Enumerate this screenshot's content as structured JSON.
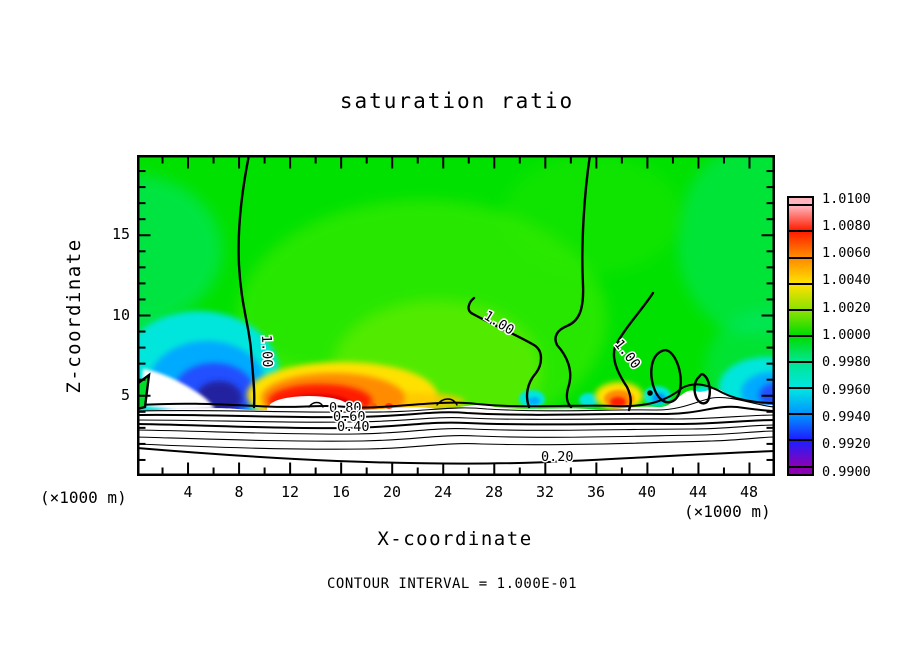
{
  "title": "saturation ratio",
  "axes": {
    "x": {
      "label": "X-coordinate",
      "unit_note_left": "(×1000 m)",
      "unit_note_right": "(×1000 m)",
      "tick_labels": [
        "4",
        "8",
        "12",
        "16",
        "20",
        "24",
        "28",
        "32",
        "36",
        "40",
        "44",
        "48"
      ]
    },
    "z": {
      "label": "Z-coordinate",
      "tick_labels": [
        "5",
        "10",
        "15"
      ]
    }
  },
  "colorbar": {
    "labels": [
      "1.0100",
      "1.0080",
      "1.0060",
      "1.0040",
      "1.0020",
      "1.0000",
      "0.9980",
      "0.9960",
      "0.9940",
      "0.9920",
      "0.9900"
    ],
    "colors_top_to_bottom": [
      "#ffb4be",
      "#ff1e00",
      "#ff8c00",
      "#ffe100",
      "#8ce100",
      "#00dc00",
      "#00e691",
      "#00e6e1",
      "#0096ff",
      "#1e1eff",
      "#8c00b4"
    ]
  },
  "contour_labels": {
    "one": "1.00",
    "eighty": "0.80",
    "sixty": "0.60",
    "forty": "0.40",
    "twenty": "0.20"
  },
  "footer": {
    "contour_note": "CONTOUR INTERVAL = 1.000E-01"
  },
  "chart_data": {
    "type": "heatmap",
    "title": "saturation ratio",
    "xlabel": "X-coordinate",
    "ylabel": "Z-coordinate",
    "axis_units": "×1000 m",
    "xlim": [
      0,
      50
    ],
    "zlim": [
      0,
      20
    ],
    "x_major_step": 4,
    "x_minor_step": 2,
    "z_major_step": 5,
    "z_minor_step": 1,
    "x_tick_values": [
      4,
      8,
      12,
      16,
      20,
      24,
      28,
      32,
      36,
      40,
      44,
      48
    ],
    "z_tick_values": [
      5,
      10,
      15
    ],
    "colorbar": {
      "min": 0.99,
      "max": 1.01,
      "tick_values": [
        1.01,
        1.008,
        1.006,
        1.004,
        1.002,
        1.0,
        0.998,
        0.996,
        0.994,
        0.992,
        0.99
      ],
      "colors_top_to_bottom": [
        "#ffb4be",
        "#ff1e00",
        "#ff8c00",
        "#ffe100",
        "#8ce100",
        "#00dc00",
        "#00e691",
        "#00e6e1",
        "#0096ff",
        "#1e1eff",
        "#8c00b4"
      ],
      "orientation": "vertical-right"
    },
    "contour_interval": 0.1,
    "contour_interval_note": "CONTOUR INTERVAL = 1.000E-01",
    "labeled_contour_values": [
      0.2,
      0.4,
      0.6,
      0.8,
      1.0
    ],
    "features": [
      "field mostly green (saturation ~1.000-1.002) above z~4.5",
      "white sub-saturated layer below z~4.5 crossed by ~9 quasi-horizontal contour lines (0.2 to 0.9, interval 0.1)",
      "blue-cyan fan of low saturation (~0.992-0.998) near left edge, x~0-8, z~4.5-10, darkest navy core near x~6,z~5",
      "red-orange-yellow supersaturation dome (~1.004-1.010) at x~11-20, z~4.5-6.5 with white cavity at its base",
      "secondary small orange-red spot at x~37-39, z~4.5-5.5",
      "cyan-blue low-saturation fan at right edge x~47-50, z~4.5-7 and smaller cyan patches along cloud top near z~5",
      "three 1.00 contours descending from top of domain near x~9, x~35-37 and diagonals labeled 1.00 near x~27-29 and x~36-40",
      "closed 1.00 contour blobs near x~41-45, z~5-8"
    ]
  }
}
